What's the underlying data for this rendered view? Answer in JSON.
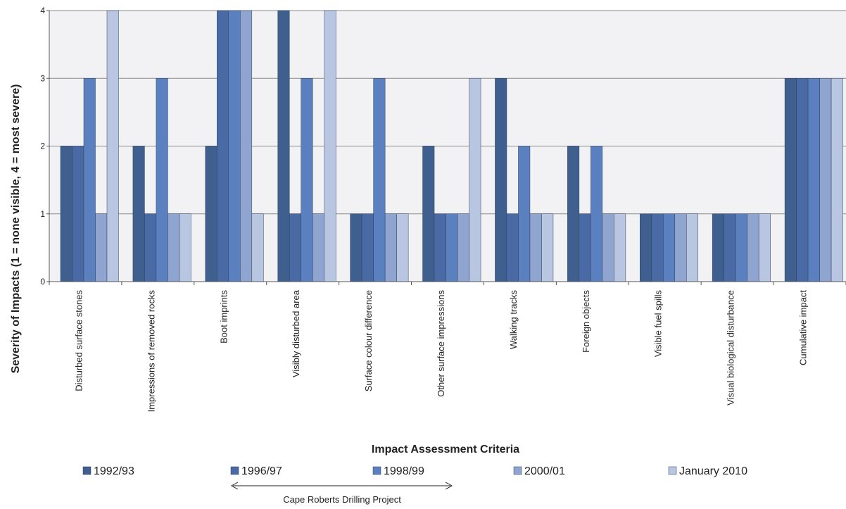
{
  "chart_data": {
    "type": "bar",
    "title": "",
    "xlabel": "Impact Assessment Criteria",
    "ylabel": "Severity of Impacts (1 = none visible, 4 = most severe)",
    "ylim": [
      0,
      4
    ],
    "yticks": [
      "0",
      "1",
      "2",
      "3",
      "4"
    ],
    "grid": "horizontal",
    "legend_position": "bottom",
    "categories": [
      "Disturbed surface stones",
      "Impressions of removed rocks",
      "Boot imprints",
      "Visibly disturbed area",
      "Surface colour difference",
      "Other surface impressions",
      "Walking tracks",
      "Foreign objects",
      "Visible fuel spills",
      "Visual biological disturbance",
      "Cumulative impact"
    ],
    "series": [
      {
        "name": "1992/93",
        "color": "#3f5f8f",
        "values": [
          2,
          2,
          2,
          4,
          1,
          2,
          3,
          2,
          1,
          1,
          3
        ]
      },
      {
        "name": "1996/97",
        "color": "#4a6aa6",
        "values": [
          2,
          1,
          4,
          1,
          1,
          1,
          1,
          1,
          1,
          1,
          3
        ]
      },
      {
        "name": "1998/99",
        "color": "#5b80c0",
        "values": [
          3,
          3,
          4,
          3,
          3,
          1,
          2,
          2,
          1,
          1,
          3
        ]
      },
      {
        "name": "2000/01",
        "color": "#8fa5cf",
        "values": [
          1,
          1,
          4,
          1,
          1,
          1,
          1,
          1,
          1,
          1,
          3
        ]
      },
      {
        "name": "January 2010",
        "color": "#b9c6e2",
        "values": [
          4,
          1,
          1,
          4,
          1,
          3,
          1,
          1,
          1,
          1,
          3
        ]
      }
    ],
    "plot_background": "#f2f2f4",
    "annotation": "Cape Roberts Drilling Project"
  }
}
